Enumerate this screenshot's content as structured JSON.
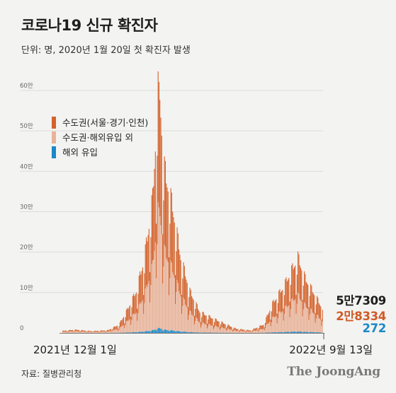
{
  "title": "코로나19 신규 확진자",
  "subtitle": "단위: 명, 2020년 1월 20일 첫 확진자 발생",
  "colors": {
    "capital": "#d4622b",
    "capital_overseas": "#e8b39a",
    "overseas": "#1a88c9",
    "axis": "#777777",
    "grid": "#dcdcdc"
  },
  "legend": [
    {
      "label": "수도권(서울·경기·인천)",
      "color": "#d4622b"
    },
    {
      "label": "수도권·해외유입 외",
      "color": "#e8b39a"
    },
    {
      "label": "해외 유입",
      "color": "#1a88c9"
    }
  ],
  "latest": {
    "total": "5만7309",
    "capital": "2만8334",
    "overseas": "272"
  },
  "dates": {
    "start": "2021년 12월 1일",
    "end": "2022년 9월 13일"
  },
  "source": "자료: 질병관리청",
  "logo": "The JoongAng",
  "chart_data": {
    "type": "bar",
    "stacked": true,
    "x_start": "2021-12-01",
    "x_end": "2022-09-13",
    "y_ticks": [
      "0",
      "10만",
      "20만",
      "30만",
      "40만",
      "50만",
      "60만"
    ],
    "ylim": [
      0,
      600000
    ],
    "legend_position": "top-left",
    "grid": true,
    "series": [
      {
        "name": "수도권(서울·경기·인천)",
        "color": "#d4622b"
      },
      {
        "name": "수도권·해외유입 외",
        "color": "#e8b39a"
      },
      {
        "name": "해외 유입",
        "color": "#1a88c9"
      }
    ],
    "key_points": [
      {
        "date": "2021-12-01",
        "total": 5100
      },
      {
        "date": "2021-12-15",
        "total": 7800
      },
      {
        "date": "2022-01-01",
        "total": 4400
      },
      {
        "date": "2022-01-20",
        "total": 6600
      },
      {
        "date": "2022-02-01",
        "total": 20000
      },
      {
        "date": "2022-02-10",
        "total": 55000
      },
      {
        "date": "2022-02-20",
        "total": 100000
      },
      {
        "date": "2022-03-01",
        "total": 180000
      },
      {
        "date": "2022-03-10",
        "total": 320000
      },
      {
        "date": "2022-03-17",
        "total": 621000
      },
      {
        "date": "2022-03-22",
        "total": 400000
      },
      {
        "date": "2022-04-01",
        "total": 300000
      },
      {
        "date": "2022-04-10",
        "total": 180000
      },
      {
        "date": "2022-04-20",
        "total": 100000
      },
      {
        "date": "2022-05-01",
        "total": 50000
      },
      {
        "date": "2022-05-20",
        "total": 30000
      },
      {
        "date": "2022-06-10",
        "total": 10000
      },
      {
        "date": "2022-06-26",
        "total": 6000
      },
      {
        "date": "2022-07-10",
        "total": 20000
      },
      {
        "date": "2022-07-20",
        "total": 70000
      },
      {
        "date": "2022-08-01",
        "total": 110000
      },
      {
        "date": "2022-08-17",
        "total": 180000
      },
      {
        "date": "2022-08-25",
        "total": 130000
      },
      {
        "date": "2022-09-05",
        "total": 90000
      },
      {
        "date": "2022-09-13",
        "total": 57309,
        "capital": 28334,
        "overseas": 272
      }
    ]
  }
}
